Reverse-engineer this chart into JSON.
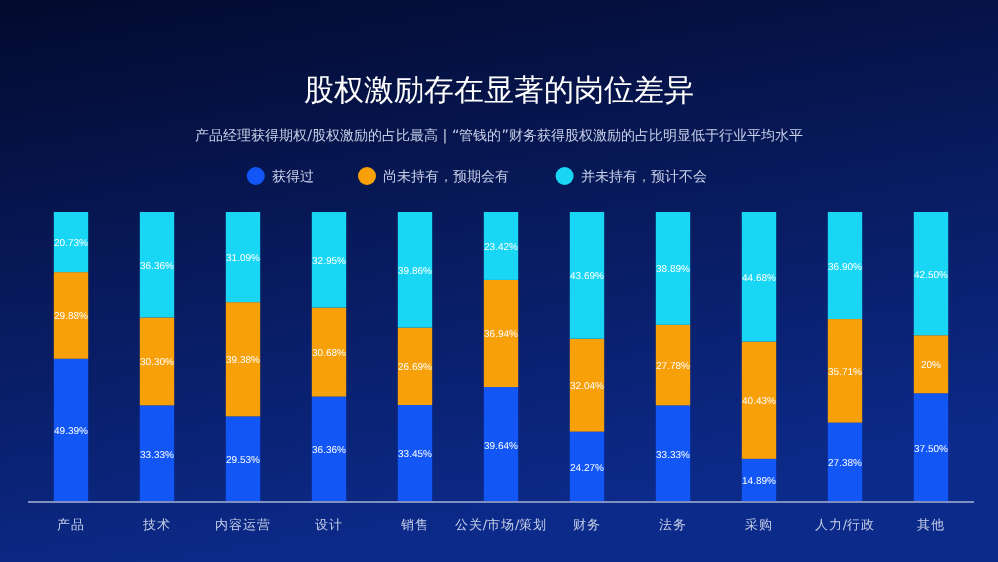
{
  "chart_data": {
    "type": "bar",
    "stacked": true,
    "title": "股权激励存在显著的岗位差异",
    "subtitle": "产品经理获得期权/股权激励的占比最高 | “管钱的”财务获得股权激励的占比明显低于行业平均水平",
    "categories": [
      "产品",
      "技术",
      "内容运营",
      "设计",
      "销售",
      "公关/市场/策划",
      "财务",
      "法务",
      "采购",
      "人力/行政",
      "其他"
    ],
    "ylim": [
      0,
      100
    ],
    "tick_labels": "x",
    "legend": "top",
    "grid": false,
    "series": [
      {
        "name": "获得过",
        "color": "#1257f5",
        "values": [
          49.39,
          33.33,
          29.53,
          36.36,
          33.45,
          39.64,
          24.27,
          33.33,
          14.89,
          27.38,
          37.5
        ],
        "value_labels": [
          "49.39%",
          "33.33%",
          "29.53%",
          "36.36%",
          "33.45%",
          "39.64%",
          "24.27%",
          "33.33%",
          "14.89%",
          "27.38%",
          "37.50%"
        ]
      },
      {
        "name": "尚未持有，预期会有",
        "color": "#f7a00a",
        "values": [
          29.88,
          30.3,
          39.38,
          30.68,
          26.69,
          36.94,
          32.04,
          27.78,
          40.43,
          35.71,
          20
        ],
        "value_labels": [
          "29.88%",
          "30.30%",
          "39.38%",
          "30.68%",
          "26.69%",
          "36.94%",
          "32.04%",
          "27.78%",
          "40.43%",
          "35.71%",
          "20%"
        ]
      },
      {
        "name": "并未持有，预计不会",
        "color": "#1ad6f5",
        "values": [
          20.73,
          36.36,
          31.09,
          32.95,
          39.86,
          23.42,
          43.69,
          38.89,
          44.68,
          36.9,
          42.5
        ],
        "value_labels": [
          "20.73%",
          "36.36%",
          "31.09%",
          "32.95%",
          "39.86%",
          "23.42%",
          "43.69%",
          "38.89%",
          "44.68%",
          "36.90%",
          "42.50%"
        ]
      }
    ]
  }
}
